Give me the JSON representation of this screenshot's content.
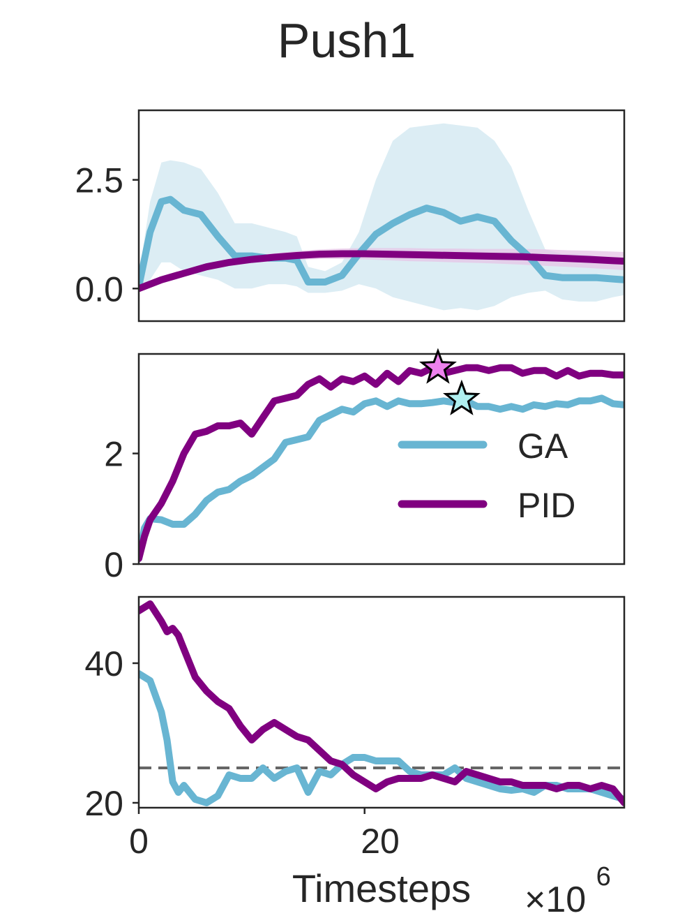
{
  "chart_data": {
    "type": "line",
    "title": "Push1",
    "xlabel": "Timesteps",
    "x_multiplier": "×10",
    "x_multiplier_exp": "6",
    "x_ticks": [
      0,
      20
    ],
    "xlim": [
      0,
      43
    ],
    "colors": {
      "GA": "#68b5d2",
      "PID": "#800080",
      "GA_band": "#d6eaf2",
      "PID_band": "#e7c4e7",
      "threshold": "#666666"
    },
    "legend": {
      "placement": "center-right",
      "entries": [
        "GA",
        "PID"
      ]
    },
    "panels": [
      {
        "name": "top",
        "ylim": [
          -0.75,
          4.1
        ],
        "y_ticks": [
          0.0,
          2.5
        ],
        "y_tick_labels": [
          "0.0",
          "2.5"
        ],
        "series": [
          {
            "name": "GA",
            "x": [
              0,
              1,
              2,
              2.8,
              4,
              5.5,
              7,
              8.5,
              10,
              11.5,
              13,
              14,
              15,
              16.5,
              18,
              19.5,
              21,
              22.5,
              24,
              25.5,
              27,
              28.5,
              30,
              31.5,
              33,
              34.5,
              36,
              37.5,
              39,
              40.5,
              42,
              43
            ],
            "y": [
              0.05,
              1.3,
              2.0,
              2.05,
              1.8,
              1.7,
              1.2,
              0.75,
              0.75,
              0.7,
              0.7,
              0.65,
              0.15,
              0.15,
              0.3,
              0.8,
              1.25,
              1.5,
              1.7,
              1.85,
              1.75,
              1.55,
              1.65,
              1.55,
              1.1,
              0.75,
              0.3,
              0.25,
              0.25,
              0.25,
              0.22,
              0.2
            ],
            "lower": [
              -0.1,
              0.2,
              0.6,
              0.6,
              0.4,
              0.3,
              0.2,
              0.0,
              0.0,
              0.1,
              0.1,
              0.05,
              -0.1,
              -0.1,
              -0.05,
              0.1,
              0.0,
              -0.2,
              -0.3,
              -0.4,
              -0.5,
              -0.45,
              -0.5,
              -0.4,
              -0.2,
              -0.1,
              -0.05,
              -0.25,
              -0.3,
              -0.3,
              -0.2,
              -0.15
            ],
            "upper": [
              0.3,
              2.0,
              2.9,
              2.95,
              2.9,
              2.75,
              2.2,
              1.5,
              1.5,
              1.4,
              1.3,
              1.2,
              0.5,
              0.4,
              0.6,
              1.3,
              2.5,
              3.4,
              3.7,
              3.75,
              3.8,
              3.75,
              3.7,
              3.4,
              2.8,
              1.8,
              0.9,
              0.8,
              0.8,
              0.75,
              0.7,
              0.65
            ]
          },
          {
            "name": "PID",
            "x": [
              0,
              2,
              4,
              6,
              8,
              10,
              12,
              14,
              16,
              18,
              20,
              22,
              24,
              26,
              28,
              30,
              32,
              34,
              36,
              38,
              40,
              42,
              43
            ],
            "y": [
              0.0,
              0.2,
              0.35,
              0.5,
              0.6,
              0.67,
              0.72,
              0.76,
              0.79,
              0.8,
              0.8,
              0.79,
              0.78,
              0.77,
              0.76,
              0.75,
              0.74,
              0.73,
              0.71,
              0.69,
              0.67,
              0.64,
              0.63
            ],
            "lower": [
              -0.03,
              0.15,
              0.3,
              0.44,
              0.53,
              0.59,
              0.63,
              0.66,
              0.68,
              0.68,
              0.67,
              0.65,
              0.63,
              0.62,
              0.6,
              0.59,
              0.57,
              0.55,
              0.52,
              0.5,
              0.47,
              0.44,
              0.42
            ],
            "upper": [
              0.03,
              0.25,
              0.4,
              0.56,
              0.67,
              0.75,
              0.81,
              0.86,
              0.9,
              0.92,
              0.93,
              0.93,
              0.93,
              0.92,
              0.92,
              0.91,
              0.91,
              0.91,
              0.9,
              0.88,
              0.87,
              0.85,
              0.84
            ]
          }
        ]
      },
      {
        "name": "middle",
        "ylim": [
          0,
          3.8
        ],
        "y_ticks": [
          0,
          2
        ],
        "y_tick_labels": [
          "0",
          "2"
        ],
        "series": [
          {
            "name": "GA",
            "x": [
              0,
              0.5,
              1,
              2,
              3,
              4,
              5,
              6,
              7,
              8,
              9,
              10,
              11,
              12,
              13,
              14,
              15,
              16,
              17,
              18,
              19,
              20,
              21,
              22,
              23,
              24,
              25,
              26,
              27,
              28,
              29,
              30,
              31,
              32,
              33,
              34,
              35,
              36,
              37,
              38,
              39,
              40,
              41,
              42,
              43
            ],
            "y": [
              0.1,
              0.65,
              0.82,
              0.8,
              0.72,
              0.72,
              0.9,
              1.15,
              1.3,
              1.35,
              1.5,
              1.6,
              1.75,
              1.9,
              2.2,
              2.25,
              2.3,
              2.6,
              2.7,
              2.8,
              2.75,
              2.9,
              2.95,
              2.85,
              2.95,
              2.9,
              2.9,
              2.92,
              2.95,
              2.92,
              2.95,
              2.85,
              2.85,
              2.8,
              2.85,
              2.8,
              2.88,
              2.85,
              2.9,
              2.88,
              2.95,
              2.95,
              3.0,
              2.9,
              2.88
            ]
          },
          {
            "name": "PID",
            "x": [
              0,
              0.5,
              1,
              2,
              3,
              4,
              5,
              6,
              7,
              8,
              9,
              10,
              11,
              12,
              13,
              14,
              15,
              16,
              17,
              18,
              19,
              20,
              21,
              22,
              23,
              24,
              25,
              26,
              27,
              28,
              29,
              30,
              31,
              32,
              33,
              34,
              35,
              36,
              37,
              38,
              39,
              40,
              41,
              42,
              43
            ],
            "y": [
              0.1,
              0.5,
              0.8,
              1.1,
              1.5,
              2.0,
              2.35,
              2.4,
              2.5,
              2.5,
              2.55,
              2.35,
              2.65,
              2.95,
              3.0,
              3.05,
              3.25,
              3.35,
              3.2,
              3.35,
              3.3,
              3.4,
              3.25,
              3.45,
              3.3,
              3.5,
              3.45,
              3.55,
              3.45,
              3.5,
              3.55,
              3.55,
              3.5,
              3.55,
              3.55,
              3.45,
              3.5,
              3.5,
              3.4,
              3.5,
              3.4,
              3.45,
              3.45,
              3.42,
              3.42
            ]
          }
        ],
        "markers": [
          {
            "series": "PID",
            "shape": "star",
            "x": 26.5,
            "y": 3.55,
            "fill": "#ee82ee"
          },
          {
            "series": "GA",
            "shape": "star",
            "x": 28.6,
            "y": 2.98,
            "fill": "#b0f0f0"
          }
        ]
      },
      {
        "name": "bottom",
        "ylim": [
          19.3,
          49.5
        ],
        "y_ticks": [
          20,
          40
        ],
        "y_tick_labels": [
          "20",
          "40"
        ],
        "threshold": 25,
        "series": [
          {
            "name": "GA",
            "x": [
              0,
              1,
              2,
              2.5,
              3,
              3.5,
              4,
              5,
              6,
              7,
              8,
              9,
              10,
              11,
              12,
              13,
              14,
              15,
              16,
              17,
              18,
              19,
              20,
              21,
              22,
              23,
              24,
              25,
              26,
              27,
              28,
              29,
              30,
              31,
              32,
              33,
              34,
              35,
              36,
              37,
              38,
              39,
              40,
              41,
              42,
              43
            ],
            "y": [
              38.5,
              37.5,
              33.0,
              29.0,
              23.0,
              21.5,
              22.5,
              20.5,
              20.0,
              21.0,
              24.0,
              23.5,
              23.5,
              25.0,
              23.5,
              24.5,
              25.0,
              21.5,
              24.5,
              24.0,
              25.5,
              26.5,
              26.5,
              26.0,
              26.0,
              26.0,
              24.5,
              24.0,
              24.0,
              24.0,
              25.0,
              23.5,
              23.0,
              22.5,
              22.0,
              21.8,
              22.0,
              21.5,
              22.5,
              22.5,
              22.0,
              22.0,
              22.0,
              21.5,
              21.0,
              20.5
            ]
          },
          {
            "name": "PID",
            "x": [
              0,
              1,
              2,
              2.5,
              3,
              3.5,
              4,
              5,
              6,
              7,
              8,
              9,
              10,
              11,
              12,
              13,
              14,
              15,
              16,
              17,
              18,
              19,
              20,
              21,
              22,
              23,
              24,
              25,
              26,
              27,
              28,
              29,
              30,
              31,
              32,
              33,
              34,
              35,
              36,
              37,
              38,
              39,
              40,
              41,
              42,
              43
            ],
            "y": [
              47.5,
              48.5,
              46.0,
              44.5,
              45.0,
              44.0,
              42.0,
              38.0,
              36.0,
              34.5,
              33.5,
              31.0,
              29.0,
              30.5,
              31.5,
              30.5,
              29.5,
              29.0,
              27.5,
              26.0,
              25.5,
              24.0,
              23.0,
              22.0,
              23.0,
              23.5,
              23.5,
              23.5,
              24.0,
              23.5,
              23.0,
              24.5,
              24.0,
              23.5,
              23.0,
              23.0,
              22.5,
              22.5,
              22.5,
              22.0,
              22.5,
              22.5,
              22.0,
              22.5,
              22.0,
              20.0
            ]
          }
        ]
      }
    ]
  }
}
